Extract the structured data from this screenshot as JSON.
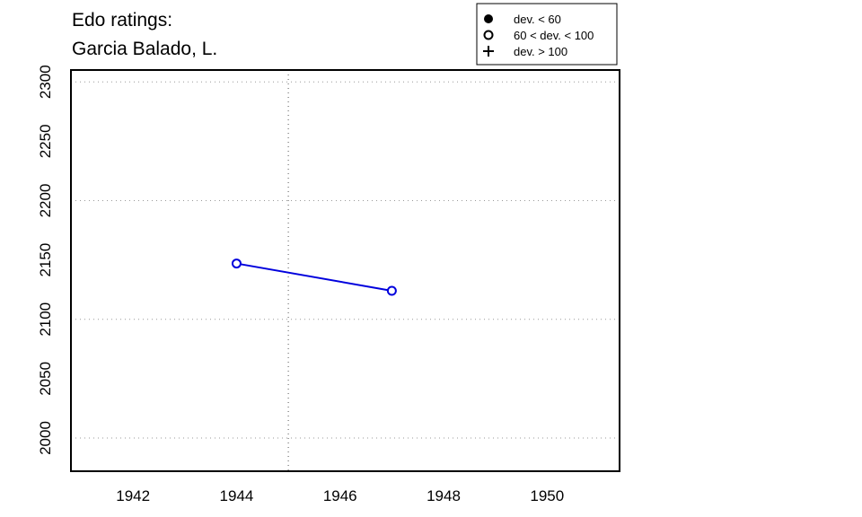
{
  "chart_data": {
    "type": "line",
    "title_lines": [
      "Edo ratings:",
      "Garcia Balado, L."
    ],
    "xlabel": "",
    "ylabel": "",
    "xlim": [
      1940.8,
      1951.4
    ],
    "ylim": [
      1972,
      2310
    ],
    "x_ticks": [
      1942,
      1944,
      1946,
      1948,
      1950
    ],
    "y_ticks": [
      2000,
      2050,
      2100,
      2150,
      2200,
      2250,
      2300
    ],
    "x_grid": [
      1945
    ],
    "y_grid": [
      2000,
      2100,
      2200,
      2300
    ],
    "grid": true,
    "series": [
      {
        "color": "#0000dd",
        "x": [
          1944,
          1947
        ],
        "y": [
          2147,
          2124
        ],
        "markers": [
          "open-circle",
          "open-circle"
        ]
      }
    ],
    "legend": {
      "position": "top-right",
      "entries": [
        {
          "marker": "filled-circle",
          "label": "dev. < 60"
        },
        {
          "marker": "open-circle",
          "label": "60 < dev. < 100"
        },
        {
          "marker": "plus",
          "label": "dev. > 100"
        }
      ]
    }
  }
}
